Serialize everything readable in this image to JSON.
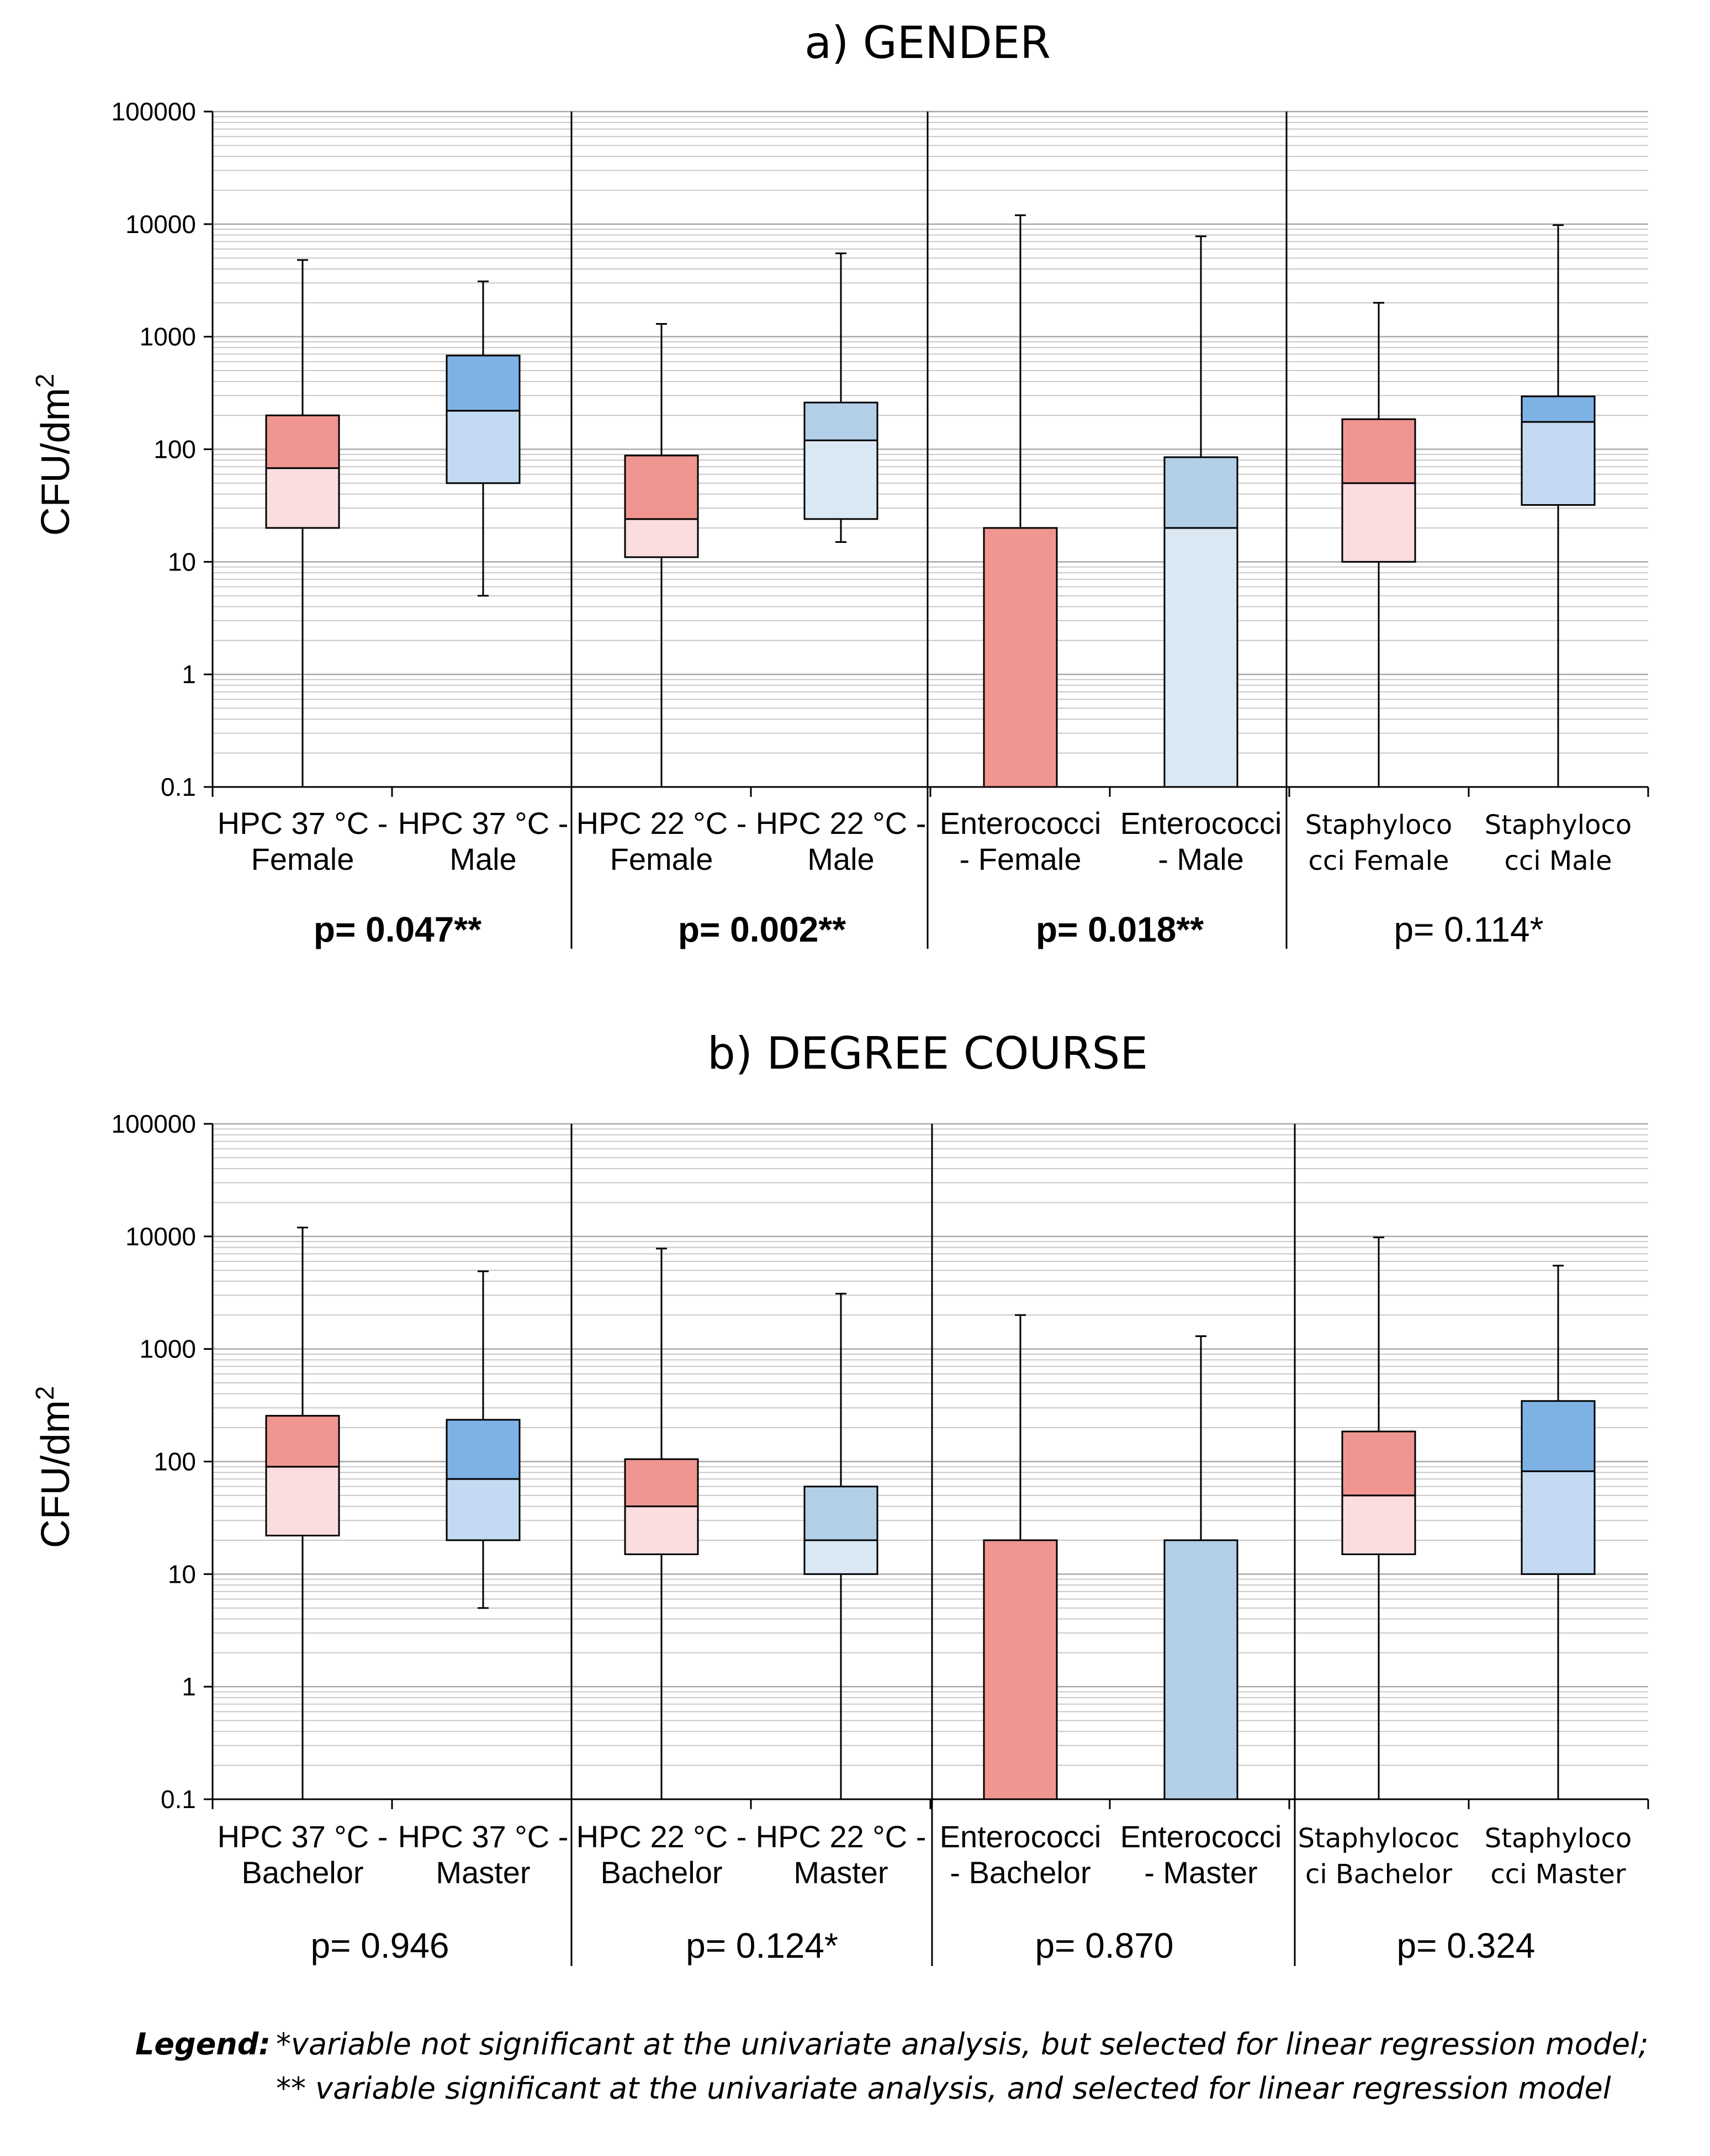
{
  "legend": {
    "label": "Legend:",
    "line1": "*variable not significant at the univariate analysis, but selected for linear regression model;",
    "line2": "** variable significant at the univariate analysis, and selected for linear regression model"
  },
  "chart_data": [
    {
      "type": "box",
      "title": "a) GENDER",
      "ylabel": "CFU/dm",
      "ylabel_sup": "2",
      "yscale": "log",
      "ylim": [
        0.1,
        100000
      ],
      "yticks": [
        "0.1",
        "1",
        "10",
        "100",
        "1000",
        "10000",
        "100000"
      ],
      "groups": [
        {
          "pvalue": "p= 0.047**",
          "bold": true,
          "boxes": [
            {
              "label": [
                "HPC 37 °C -",
                "Female"
              ],
              "min": 0.1,
              "q1": 20,
              "median": 68,
              "q3": 200,
              "max": 4800,
              "color_low": "#fbdcdf",
              "color_high": "#ef9691"
            },
            {
              "label": [
                "HPC 37 °C -",
                "Male"
              ],
              "min": 5,
              "q1": 50,
              "median": 220,
              "q3": 680,
              "max": 3100,
              "color_low": "#c3daf2",
              "color_high": "#7eb2e5"
            }
          ]
        },
        {
          "pvalue": "p= 0.002**",
          "bold": true,
          "boxes": [
            {
              "label": [
                "HPC 22 °C -",
                "Female"
              ],
              "min": 0.1,
              "q1": 11,
              "median": 24,
              "q3": 88,
              "max": 1300,
              "color_low": "#fbdcdf",
              "color_high": "#ef9691"
            },
            {
              "label": [
                "HPC 22 °C -",
                "Male"
              ],
              "min": 15,
              "q1": 24,
              "median": 120,
              "q3": 260,
              "max": 5500,
              "color_low": "#dae8f4",
              "color_high": "#b3cfe7"
            }
          ]
        },
        {
          "pvalue": "p= 0.018**",
          "bold": true,
          "boxes": [
            {
              "label": [
                "Enterococci",
                "- Female"
              ],
              "min": 0.1,
              "q1": 0.1,
              "median": 0.1,
              "q3": 20,
              "max": 12000,
              "color_low": "#ef9691",
              "color_high": "#ef9691"
            },
            {
              "label": [
                "Enterococci",
                "- Male"
              ],
              "min": 0.1,
              "q1": 0.1,
              "median": 20,
              "q3": 85,
              "max": 7800,
              "color_low": "#dae8f4",
              "color_high": "#b3cfe7"
            }
          ]
        },
        {
          "pvalue": "p= 0.114*",
          "bold": false,
          "boxes": [
            {
              "label": [
                "Staphyloco",
                "cci Female"
              ],
              "small": true,
              "min": 0.1,
              "q1": 10,
              "median": 50,
              "q3": 185,
              "max": 2000,
              "color_low": "#fbdcdf",
              "color_high": "#ef9691"
            },
            {
              "label": [
                "Staphyloco",
                "cci Male"
              ],
              "small": true,
              "min": 0.1,
              "q1": 32,
              "median": 175,
              "q3": 295,
              "max": 9800,
              "color_low": "#c3daf2",
              "color_high": "#7eb2e5"
            }
          ]
        }
      ]
    },
    {
      "type": "box",
      "title": "b) DEGREE COURSE",
      "ylabel": "CFU/dm",
      "ylabel_sup": "2",
      "yscale": "log",
      "ylim": [
        0.1,
        100000
      ],
      "yticks": [
        "0.1",
        "1",
        "10",
        "100",
        "1000",
        "10000",
        "100000"
      ],
      "groups": [
        {
          "pvalue": "p= 0.946",
          "bold": false,
          "boxes": [
            {
              "label": [
                "HPC 37 °C -",
                "Bachelor"
              ],
              "min": 0.1,
              "q1": 22,
              "median": 90,
              "q3": 255,
              "max": 12000,
              "color_low": "#fbdcdf",
              "color_high": "#ef9691"
            },
            {
              "label": [
                "HPC 37 °C -",
                "Master"
              ],
              "min": 5,
              "q1": 20,
              "median": 70,
              "q3": 235,
              "max": 4900,
              "color_low": "#c3daf2",
              "color_high": "#7eb2e5"
            }
          ]
        },
        {
          "pvalue": "p= 0.124*",
          "bold": false,
          "boxes": [
            {
              "label": [
                "HPC 22 °C -",
                "Bachelor"
              ],
              "min": 0.1,
              "q1": 15,
              "median": 40,
              "q3": 105,
              "max": 7800,
              "color_low": "#fbdcdf",
              "color_high": "#ef9691"
            },
            {
              "label": [
                "HPC 22 °C -",
                "Master"
              ],
              "min": 0.1,
              "q1": 10,
              "median": 20,
              "q3": 60,
              "max": 3100,
              "color_low": "#dae8f4",
              "color_high": "#b3cfe7"
            }
          ]
        },
        {
          "pvalue": "p= 0.870",
          "bold": false,
          "boxes": [
            {
              "label": [
                "Enterococci",
                "- Bachelor"
              ],
              "min": 0.1,
              "q1": 0.1,
              "median": 0.1,
              "q3": 20,
              "max": 2000,
              "color_low": "#ef9691",
              "color_high": "#ef9691"
            },
            {
              "label": [
                "Enterococci",
                "- Master"
              ],
              "min": 0.1,
              "q1": 0.1,
              "median": 0.1,
              "q3": 20,
              "max": 1300,
              "color_low": "#b3cfe7",
              "color_high": "#b3cfe7"
            }
          ]
        },
        {
          "pvalue": "p= 0.324",
          "bold": false,
          "boxes": [
            {
              "label": [
                "Staphylococ",
                "ci Bachelor"
              ],
              "small": true,
              "min": 0.1,
              "q1": 15,
              "median": 50,
              "q3": 185,
              "max": 9800,
              "color_low": "#fbdcdf",
              "color_high": "#ef9691"
            },
            {
              "label": [
                "Staphyloco",
                "cci Master"
              ],
              "small": true,
              "min": 0.1,
              "q1": 10,
              "median": 82,
              "q3": 345,
              "max": 5500,
              "color_low": "#c3daf2",
              "color_high": "#7eb2e5"
            }
          ]
        }
      ]
    }
  ]
}
